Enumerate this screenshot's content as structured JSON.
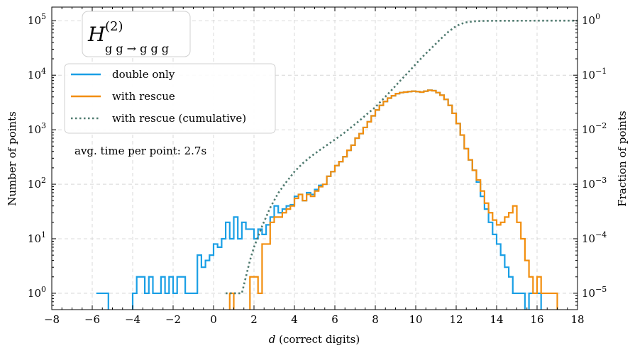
{
  "chart_data": {
    "type": "line",
    "title_main": "H",
    "title_sup": "(2)",
    "title_sub": "g g → g g g",
    "xlabel_italic": "d",
    "xlabel_rest": " (correct digits)",
    "ylabel": "Number of points",
    "y2label": "Fraction of points",
    "annotation": "avg. time per point: 2.7s",
    "xlim": [
      -8,
      18
    ],
    "ylim_log10": [
      -0.3,
      5.25
    ],
    "y2_offset_log10": -5,
    "xticks": [
      -8,
      -6,
      -4,
      -2,
      0,
      2,
      4,
      6,
      8,
      10,
      12,
      14,
      16,
      18
    ],
    "xtick_labels": [
      "−8",
      "−6",
      "−4",
      "−2",
      "0",
      "2",
      "4",
      "6",
      "8",
      "10",
      "12",
      "14",
      "16",
      "18"
    ],
    "yticks_exp": [
      0,
      1,
      2,
      3,
      4,
      5
    ],
    "y2ticks_exp": [
      -5,
      -4,
      -3,
      -2,
      -1,
      0
    ],
    "grid": true,
    "legend_position": "upper-left",
    "colors": {
      "double_only": "#1a9fe5",
      "with_rescue": "#f28e0e",
      "cumulative": "#4f7a6f"
    },
    "series": [
      {
        "name": "double only",
        "style": "step",
        "x": [
          -5.8,
          -5.6,
          -5.4,
          -5.2,
          -5.0,
          -4.8,
          -4.6,
          -4.4,
          -4.2,
          -4.0,
          -3.8,
          -3.6,
          -3.4,
          -3.2,
          -3.0,
          -2.8,
          -2.6,
          -2.4,
          -2.2,
          -2.0,
          -1.8,
          -1.6,
          -1.4,
          -1.2,
          -1.0,
          -0.8,
          -0.6,
          -0.4,
          -0.2,
          0.0,
          0.2,
          0.4,
          0.6,
          0.8,
          1.0,
          1.2,
          1.4,
          1.6,
          1.8,
          2.0,
          2.2,
          2.4,
          2.6,
          2.8,
          3.0,
          3.2,
          3.4,
          3.6,
          3.8,
          4.0,
          4.2,
          4.4,
          4.6,
          4.8,
          5.0,
          5.2,
          5.4,
          5.6,
          5.8,
          6.0,
          6.2,
          6.4,
          6.6,
          6.8,
          7.0,
          7.2,
          7.4,
          7.6,
          7.8,
          8.0,
          8.2,
          8.4,
          8.6,
          8.8,
          9.0,
          9.2,
          9.4,
          9.6,
          9.8,
          10.0,
          10.2,
          10.4,
          10.6,
          10.8,
          11.0,
          11.2,
          11.4,
          11.6,
          11.8,
          12.0,
          12.2,
          12.4,
          12.6,
          12.8,
          13.0,
          13.2,
          13.4,
          13.6,
          13.8,
          14.0,
          14.2,
          14.4,
          14.6,
          14.8,
          15.0,
          15.2,
          15.4,
          15.6,
          15.8,
          16.0,
          16.2,
          16.4,
          16.6
        ],
        "y": [
          1,
          1,
          1,
          0,
          0,
          0,
          0,
          0,
          0,
          1,
          2,
          2,
          1,
          2,
          1,
          1,
          2,
          1,
          2,
          1,
          2,
          2,
          1,
          1,
          1,
          5,
          3,
          4,
          5,
          8,
          7,
          10,
          20,
          10,
          25,
          10,
          20,
          15,
          15,
          10,
          15,
          12,
          18,
          25,
          40,
          30,
          35,
          40,
          42,
          60,
          65,
          50,
          70,
          65,
          80,
          95,
          100,
          140,
          170,
          220,
          260,
          320,
          420,
          520,
          700,
          850,
          1100,
          1400,
          1800,
          2300,
          2800,
          3300,
          3800,
          4200,
          4600,
          4800,
          4900,
          5000,
          5100,
          5000,
          4900,
          5100,
          5300,
          5200,
          4800,
          4300,
          3600,
          2800,
          2000,
          1300,
          800,
          450,
          280,
          180,
          110,
          60,
          35,
          20,
          12,
          8,
          5,
          3,
          2,
          1,
          1,
          1,
          0,
          1,
          1,
          1,
          0,
          0,
          0
        ]
      },
      {
        "name": "with rescue",
        "style": "step",
        "x": [
          0.6,
          0.8,
          1.0,
          1.2,
          1.4,
          1.6,
          1.8,
          2.0,
          2.2,
          2.4,
          2.6,
          2.8,
          3.0,
          3.2,
          3.4,
          3.6,
          3.8,
          4.0,
          4.2,
          4.4,
          4.6,
          4.8,
          5.0,
          5.2,
          5.4,
          5.6,
          5.8,
          6.0,
          6.2,
          6.4,
          6.6,
          6.8,
          7.0,
          7.2,
          7.4,
          7.6,
          7.8,
          8.0,
          8.2,
          8.4,
          8.6,
          8.8,
          9.0,
          9.2,
          9.4,
          9.6,
          9.8,
          10.0,
          10.2,
          10.4,
          10.6,
          10.8,
          11.0,
          11.2,
          11.4,
          11.6,
          11.8,
          12.0,
          12.2,
          12.4,
          12.6,
          12.8,
          13.0,
          13.2,
          13.4,
          13.6,
          13.8,
          14.0,
          14.2,
          14.4,
          14.6,
          14.8,
          15.0,
          15.2,
          15.4,
          15.6,
          15.8,
          16.0,
          16.2,
          16.4,
          16.6,
          16.8,
          17.0,
          17.2,
          17.4,
          17.6,
          17.8
        ],
        "y": [
          0,
          1,
          0,
          0,
          0,
          0,
          2,
          2,
          1,
          8,
          8,
          20,
          25,
          25,
          30,
          35,
          40,
          55,
          65,
          50,
          65,
          60,
          75,
          90,
          100,
          140,
          170,
          220,
          260,
          320,
          420,
          520,
          700,
          850,
          1100,
          1400,
          1800,
          2300,
          2800,
          3300,
          3800,
          4200,
          4600,
          4800,
          4900,
          5000,
          5100,
          5000,
          4900,
          5100,
          5300,
          5200,
          4800,
          4300,
          3600,
          2800,
          2000,
          1300,
          800,
          450,
          280,
          180,
          120,
          75,
          45,
          30,
          22,
          18,
          20,
          25,
          30,
          40,
          20,
          10,
          4,
          2,
          1,
          2,
          1,
          1,
          1,
          1,
          0,
          0,
          0,
          0,
          0
        ]
      },
      {
        "name": "with rescue (cumulative)",
        "style": "dotted",
        "axis": "right",
        "x": [
          0.6,
          1.0,
          1.4,
          1.6,
          1.8,
          2.0,
          2.4,
          2.8,
          3.2,
          3.6,
          4.0,
          4.4,
          4.8,
          5.2,
          5.6,
          6.0,
          6.4,
          6.8,
          7.2,
          7.6,
          8.0,
          8.4,
          8.8,
          9.2,
          9.6,
          10.0,
          10.4,
          10.8,
          11.2,
          11.6,
          12.0,
          12.4,
          12.8,
          13.2,
          13.6,
          14.0,
          15.0,
          16.0,
          17.0,
          18.0
        ],
        "y": [
          1e-05,
          1e-05,
          1e-05,
          2e-05,
          4e-05,
          7e-05,
          0.00017,
          0.00037,
          0.00069,
          0.0011,
          0.0017,
          0.0024,
          0.0032,
          0.0041,
          0.0052,
          0.0066,
          0.0084,
          0.011,
          0.0145,
          0.0195,
          0.026,
          0.037,
          0.053,
          0.077,
          0.11,
          0.16,
          0.23,
          0.32,
          0.45,
          0.62,
          0.8,
          0.92,
          0.97,
          0.99,
          0.995,
          0.998,
          0.999,
          1.0,
          1.0,
          1.0
        ]
      }
    ]
  }
}
